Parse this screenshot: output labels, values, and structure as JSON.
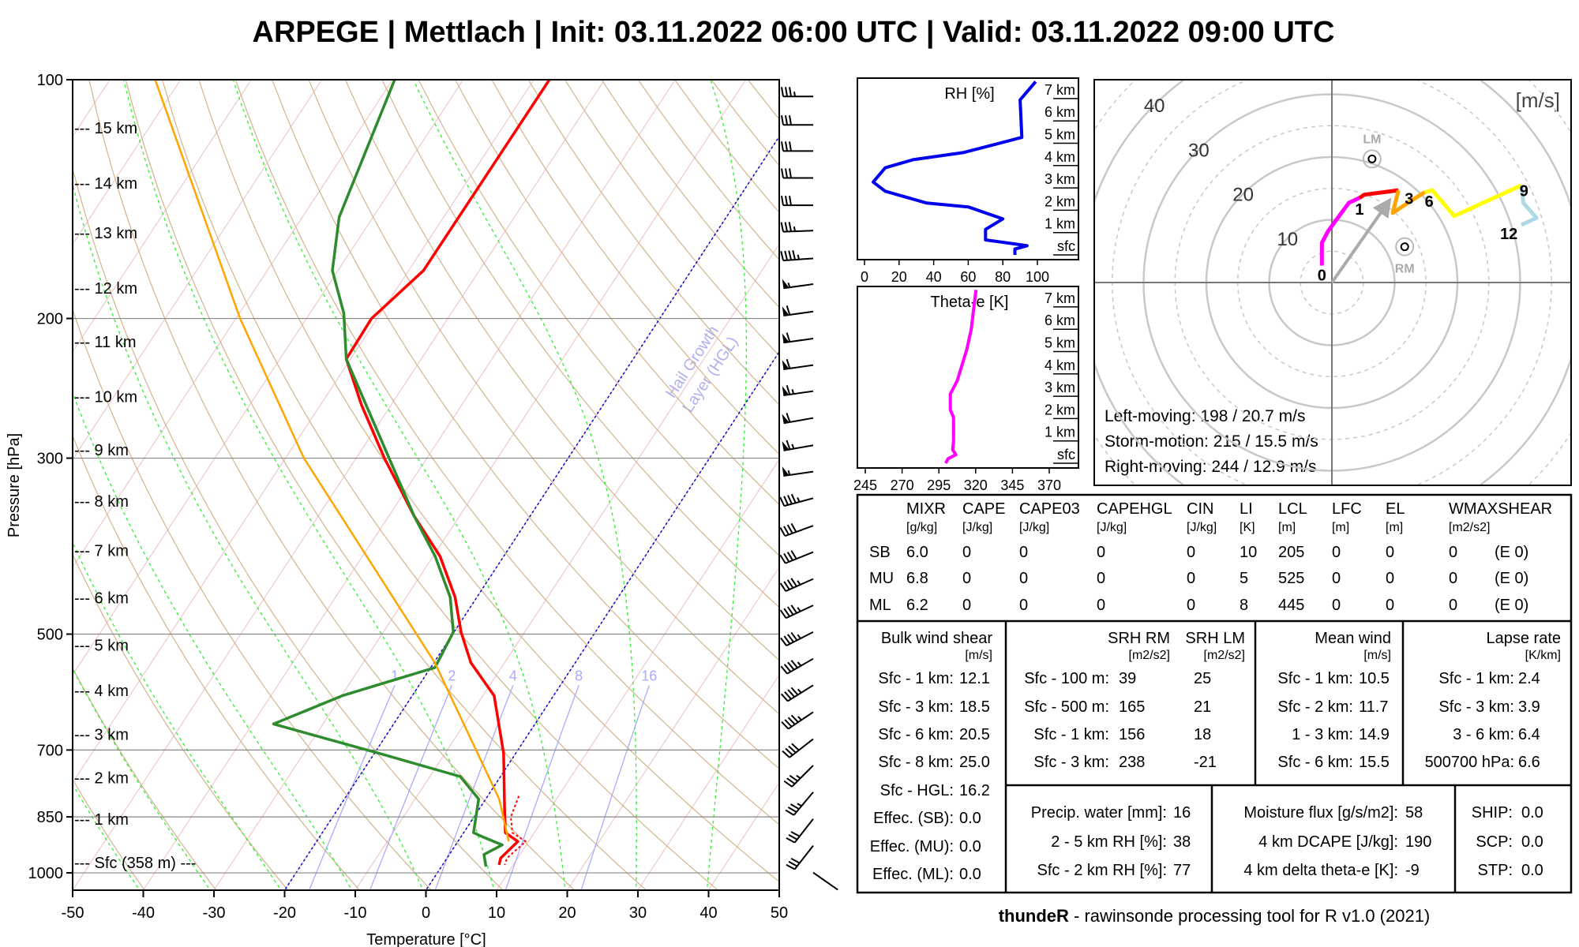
{
  "title": "ARPEGE | Mettlach | Init: 03.11.2022 06:00 UTC | Valid: 03.11.2022 09:00 UTC",
  "chart_data": [
    {
      "type": "line",
      "title": "Skew-T log-p diagram",
      "xlabel": "Temperature [°C]",
      "ylabel": "Pressure [hPa]",
      "xlim": [
        -50,
        50
      ],
      "ylim": [
        1050,
        100
      ],
      "xticks": [
        -50,
        -40,
        -30,
        -20,
        -10,
        0,
        10,
        20,
        30,
        40,
        50
      ],
      "yticks": [
        100,
        200,
        300,
        500,
        700,
        850,
        1000
      ],
      "grid": true,
      "series": [
        {
          "name": "temperature",
          "color": "#ff0000",
          "points": [
            [
              100,
              -57.8
            ],
            [
              174,
              -57.9
            ],
            [
              200,
              -60.8
            ],
            [
              225,
              -60.6
            ],
            [
              257,
              -54.2
            ],
            [
              300,
              -46.0
            ],
            [
              355,
              -36.4
            ],
            [
              399,
              -29.0
            ],
            [
              449,
              -23.1
            ],
            [
              497,
              -19.0
            ],
            [
              543,
              -14.8
            ],
            [
              598,
              -8.4
            ],
            [
              707,
              -1.7
            ],
            [
              831,
              3.6
            ],
            [
              890,
              5.9
            ],
            [
              913,
              8.5
            ],
            [
              958,
              7.6
            ],
            [
              977,
              8.0
            ]
          ]
        },
        {
          "name": "dewpoint",
          "color": "#2e8b2e",
          "points": [
            [
              100,
              -79.7
            ],
            [
              149,
              -74.8
            ],
            [
              174,
              -70.8
            ],
            [
              197,
              -65.2
            ],
            [
              225,
              -60.6
            ],
            [
              355,
              -36.4
            ],
            [
              399,
              -29.7
            ],
            [
              449,
              -23.8
            ],
            [
              497,
              -20.1
            ],
            [
              551,
              -19.4
            ],
            [
              598,
              -29.9
            ],
            [
              649,
              -37.0
            ],
            [
              707,
              -19.3
            ],
            [
              756,
              -5.7
            ],
            [
              807,
              -1.0
            ],
            [
              890,
              1.4
            ],
            [
              902,
              3.3
            ],
            [
              922,
              6.6
            ],
            [
              948,
              4.9
            ],
            [
              982,
              6.3
            ]
          ]
        },
        {
          "name": "parcel",
          "color": "#ffa500",
          "points": [
            [
              100,
              -113.6
            ],
            [
              200,
              -79.4
            ],
            [
              300,
              -57.4
            ],
            [
              543,
              -19.9
            ],
            [
              807,
              1.9
            ],
            [
              913,
              7.2
            ]
          ]
        },
        {
          "name": "virtual_temperature",
          "color": "#ff0000",
          "points": [
            [
              800,
              4.4
            ],
            [
              850,
              5.2
            ],
            [
              890,
              6.9
            ],
            [
              913,
              9.6
            ],
            [
              958,
              8.5
            ],
            [
              977,
              8.8
            ]
          ]
        }
      ],
      "height_labels": [
        {
          "label": "--- 15 km",
          "p": 115
        },
        {
          "label": "--- 14 km",
          "p": 135
        },
        {
          "label": "--- 13 km",
          "p": 156
        },
        {
          "label": "--- 12 km",
          "p": 183
        },
        {
          "label": "--- 11 km",
          "p": 214
        },
        {
          "label": "--- 10 km",
          "p": 251
        },
        {
          "label": "--- 9 km",
          "p": 293
        },
        {
          "label": "--- 8 km",
          "p": 340
        },
        {
          "label": "--- 7 km",
          "p": 392
        },
        {
          "label": "--- 6 km",
          "p": 450
        },
        {
          "label": "--- 5 km",
          "p": 516
        },
        {
          "label": "--- 4 km",
          "p": 589
        },
        {
          "label": "--- 3 km",
          "p": 669
        },
        {
          "label": "--- 2 km",
          "p": 759
        },
        {
          "label": "--- 1 km",
          "p": 856
        },
        {
          "label": "--- Sfc (358 m) ---",
          "p": 971
        }
      ],
      "mixing_ratio_lines": [
        1,
        2,
        4,
        8,
        16
      ],
      "highlight_isotherms": [
        0,
        -20
      ],
      "annotation": [
        "Hail Growth",
        "Layer (HGL)"
      ],
      "wind_barbs": [
        {
          "p": 105,
          "dir": 270,
          "kt": 35
        },
        {
          "p": 114,
          "dir": 270,
          "kt": 30
        },
        {
          "p": 123,
          "dir": 270,
          "kt": 30
        },
        {
          "p": 133,
          "dir": 270,
          "kt": 30
        },
        {
          "p": 144,
          "dir": 270,
          "kt": 30
        },
        {
          "p": 155,
          "dir": 268,
          "kt": 35
        },
        {
          "p": 168,
          "dir": 266,
          "kt": 45
        },
        {
          "p": 181,
          "dir": 262,
          "kt": 55
        },
        {
          "p": 196,
          "dir": 262,
          "kt": 60
        },
        {
          "p": 212,
          "dir": 262,
          "kt": 60
        },
        {
          "p": 229,
          "dir": 262,
          "kt": 60
        },
        {
          "p": 247,
          "dir": 262,
          "kt": 65
        },
        {
          "p": 267,
          "dir": 260,
          "kt": 60
        },
        {
          "p": 289,
          "dir": 260,
          "kt": 65
        },
        {
          "p": 312,
          "dir": 262,
          "kt": 55
        },
        {
          "p": 337,
          "dir": 255,
          "kt": 45
        },
        {
          "p": 365,
          "dir": 250,
          "kt": 40
        },
        {
          "p": 394,
          "dir": 248,
          "kt": 40
        },
        {
          "p": 426,
          "dir": 246,
          "kt": 45
        },
        {
          "p": 460,
          "dir": 245,
          "kt": 45
        },
        {
          "p": 497,
          "dir": 243,
          "kt": 45
        },
        {
          "p": 537,
          "dir": 240,
          "kt": 45
        },
        {
          "p": 580,
          "dir": 238,
          "kt": 45
        },
        {
          "p": 627,
          "dir": 236,
          "kt": 45
        },
        {
          "p": 678,
          "dir": 232,
          "kt": 40
        },
        {
          "p": 732,
          "dir": 225,
          "kt": 35
        },
        {
          "p": 791,
          "dir": 220,
          "kt": 35
        },
        {
          "p": 855,
          "dir": 218,
          "kt": 30
        },
        {
          "p": 924,
          "dir": 218,
          "kt": 30
        },
        {
          "p": 999,
          "dir": 125,
          "kt": 2
        }
      ]
    },
    {
      "type": "line",
      "title": "RH [%]",
      "xlim": [
        0,
        100
      ],
      "xticks": [
        0,
        20,
        40,
        60,
        80,
        100
      ],
      "height_ticks": [
        "sfc",
        "1 km",
        "2 km",
        "3 km",
        "4 km",
        "5 km",
        "6 km",
        "7 km"
      ],
      "color": "#0000ee",
      "points": [
        [
          7.76,
          99
        ],
        [
          6.94,
          90
        ],
        [
          5.26,
          91
        ],
        [
          4.58,
          57
        ],
        [
          4.26,
          28
        ],
        [
          3.9,
          12
        ],
        [
          3.26,
          5
        ],
        [
          2.85,
          12
        ],
        [
          2.32,
          36
        ],
        [
          2.15,
          60
        ],
        [
          1.61,
          80
        ],
        [
          1.14,
          70
        ],
        [
          0.67,
          70
        ],
        [
          0.49,
          87
        ],
        [
          0.41,
          94
        ],
        [
          0.26,
          87
        ],
        [
          0.0,
          87
        ]
      ]
    },
    {
      "type": "line",
      "title": "Theta-e [K]",
      "xlim": [
        245,
        370
      ],
      "xticks": [
        245,
        270,
        295,
        320,
        345,
        370
      ],
      "height_ticks": [
        "sfc",
        "1 km",
        "2 km",
        "3 km",
        "4 km",
        "5 km",
        "6 km",
        "7 km"
      ],
      "color": "#ff00ff",
      "points": [
        [
          7.76,
          320.2
        ],
        [
          6.0,
          317.0
        ],
        [
          5.1,
          314.0
        ],
        [
          3.7,
          307.5
        ],
        [
          3.1,
          302.8
        ],
        [
          2.4,
          302.8
        ],
        [
          2.05,
          305.0
        ],
        [
          1.0,
          305.0
        ],
        [
          0.6,
          304.4
        ],
        [
          0.38,
          306.6
        ],
        [
          0.2,
          301.2
        ],
        [
          0.0,
          299.6
        ]
      ]
    },
    {
      "type": "line",
      "title": "Hodograph",
      "unit_label": "[m/s]",
      "ring_labels": [
        10,
        20,
        30,
        40
      ],
      "segments": [
        {
          "layer": "0-1 km",
          "color": "#ff00ff",
          "points": [
            [
              -1.6,
              2.7
            ],
            [
              -1.6,
              6.3
            ],
            [
              -0.6,
              8.2
            ],
            [
              2.7,
              12.7
            ],
            [
              4.4,
              13.5
            ]
          ]
        },
        {
          "layer": "1-3 km",
          "color": "#ff0000",
          "points": [
            [
              4.4,
              13.5
            ],
            [
              5.2,
              14.0
            ],
            [
              10.6,
              14.7
            ]
          ]
        },
        {
          "layer": "3-6 km",
          "color": "#ffa500",
          "points": [
            [
              10.6,
              14.7
            ],
            [
              9.7,
              11.1
            ],
            [
              12.7,
              13.1
            ],
            [
              14.8,
              14.4
            ]
          ]
        },
        {
          "layer": "6-9 km",
          "color": "#ffff00",
          "points": [
            [
              14.8,
              14.4
            ],
            [
              16.0,
              14.7
            ],
            [
              19.5,
              10.6
            ],
            [
              30.2,
              15.5
            ]
          ]
        },
        {
          "layer": "9-12 km",
          "color": "#add8e6",
          "points": [
            [
              30.2,
              15.5
            ],
            [
              30.5,
              12.7
            ],
            [
              32.6,
              10.3
            ],
            [
              30.2,
              9.2
            ]
          ]
        }
      ],
      "height_labels": [
        {
          "text": "0",
          "u": -1.6,
          "v": 1.3
        },
        {
          "text": "1",
          "u": 4.4,
          "v": 11.8
        },
        {
          "text": "3",
          "u": 12.3,
          "v": 13.5
        },
        {
          "text": "6",
          "u": 15.5,
          "v": 13.1
        },
        {
          "text": "9",
          "u": 30.6,
          "v": 14.8
        },
        {
          "text": "12",
          "u": 28.2,
          "v": 7.9
        }
      ],
      "lm": {
        "label": "LM",
        "u": 6.4,
        "v": 19.7
      },
      "rm": {
        "label": "RM",
        "u": 11.6,
        "v": 5.7
      },
      "storm_motion": {
        "u": 8.9,
        "v": 12.7
      },
      "texts": [
        "Left-moving: 198 / 20.7 m/s",
        "Storm-motion: 215 / 15.5 m/s",
        "Right-moving: 244 / 12.9 m/s"
      ]
    }
  ],
  "table": {
    "stability": {
      "columns": [
        {
          "name": "MIXR",
          "unit": "[g/kg]"
        },
        {
          "name": "CAPE",
          "unit": "[J/kg]"
        },
        {
          "name": "CAPE03",
          "unit": "[J/kg]"
        },
        {
          "name": "CAPEHGL",
          "unit": "[J/kg]"
        },
        {
          "name": "CIN",
          "unit": "[J/kg]"
        },
        {
          "name": "LI",
          "unit": "[K]"
        },
        {
          "name": "LCL",
          "unit": "[m]"
        },
        {
          "name": "LFC",
          "unit": "[m]"
        },
        {
          "name": "EL",
          "unit": "[m]"
        },
        {
          "name": "WMAXSHEAR",
          "unit": "[m2/s2]"
        }
      ],
      "rows": [
        {
          "label": "SB",
          "values": [
            "6.0",
            "0",
            "0",
            "0",
            "0",
            "10",
            "205",
            "0",
            "0",
            "0",
            "(E 0)"
          ]
        },
        {
          "label": "MU",
          "values": [
            "6.8",
            "0",
            "0",
            "0",
            "0",
            "5",
            "525",
            "0",
            "0",
            "0",
            "(E 0)"
          ]
        },
        {
          "label": "ML",
          "values": [
            "6.2",
            "0",
            "0",
            "0",
            "0",
            "8",
            "445",
            "0",
            "0",
            "0",
            "(E 0)"
          ]
        }
      ]
    },
    "bulk_shear": {
      "title": "Bulk wind shear",
      "unit": "[m/s]",
      "rows": [
        {
          "label": "Sfc - 1 km:",
          "value": "12.1"
        },
        {
          "label": "Sfc - 3 km:",
          "value": "18.5"
        },
        {
          "label": "Sfc - 6 km:",
          "value": "20.5"
        },
        {
          "label": "Sfc - 8 km:",
          "value": "25.0"
        },
        {
          "label": "Sfc - HGL:",
          "value": "16.2"
        },
        {
          "label": "Effec. (SB):",
          "value": "0.0"
        },
        {
          "label": "Effec. (MU):",
          "value": "0.0"
        },
        {
          "label": "Effec. (ML):",
          "value": "0.0"
        }
      ]
    },
    "srh": {
      "title_rm": "SRH RM",
      "title_lm": "SRH LM",
      "unit_rm": "[m2/s2]",
      "unit_lm": "[m2/s2]",
      "rows": [
        {
          "label": "Sfc - 100 m:",
          "rm": "39",
          "lm": "25"
        },
        {
          "label": "Sfc - 500 m:",
          "rm": "165",
          "lm": "21"
        },
        {
          "label": "Sfc - 1 km:",
          "rm": "156",
          "lm": "18"
        },
        {
          "label": "Sfc - 3 km:",
          "rm": "238",
          "lm": "-21"
        }
      ]
    },
    "mean_wind": {
      "title": "Mean wind",
      "unit": "[m/s]",
      "rows": [
        {
          "label": "Sfc - 1 km:",
          "value": "10.5"
        },
        {
          "label": "Sfc - 2 km:",
          "value": "11.7"
        },
        {
          "label": "1 - 3 km:",
          "value": "14.9"
        },
        {
          "label": "Sfc - 6 km:",
          "value": "15.5"
        }
      ]
    },
    "lapse_rate": {
      "title": "Lapse rate",
      "unit": "[K/km]",
      "rows": [
        {
          "label": "Sfc - 1 km:",
          "value": "2.4"
        },
        {
          "label": "Sfc - 3 km:",
          "value": "3.9"
        },
        {
          "label": "3 - 6 km:",
          "value": "6.4"
        },
        {
          "label": "500700 hPa:",
          "value": "6.6"
        }
      ]
    },
    "moisture": {
      "rows": [
        {
          "label": "Precip. water [mm]:",
          "value": "16"
        },
        {
          "label": "2 - 5 km RH [%]:",
          "value": "38"
        },
        {
          "label": "Sfc - 2 km RH [%]:",
          "value": "77"
        }
      ]
    },
    "flux": {
      "rows": [
        {
          "label": "Moisture flux [g/s/m2]:",
          "value": "58"
        },
        {
          "label": "4 km DCAPE [J/kg]:",
          "value": "190"
        },
        {
          "label": "4 km delta theta-e [K]:",
          "value": "-9"
        }
      ]
    },
    "composite": {
      "rows": [
        {
          "label": "SHIP:",
          "value": "0.0"
        },
        {
          "label": "SCP:",
          "value": "0.0"
        },
        {
          "label": "STP:",
          "value": "0.0"
        }
      ]
    }
  },
  "footer": {
    "bold": "thundeR",
    "rest": " - rawinsonde processing tool for R v1.0 (2021)"
  }
}
